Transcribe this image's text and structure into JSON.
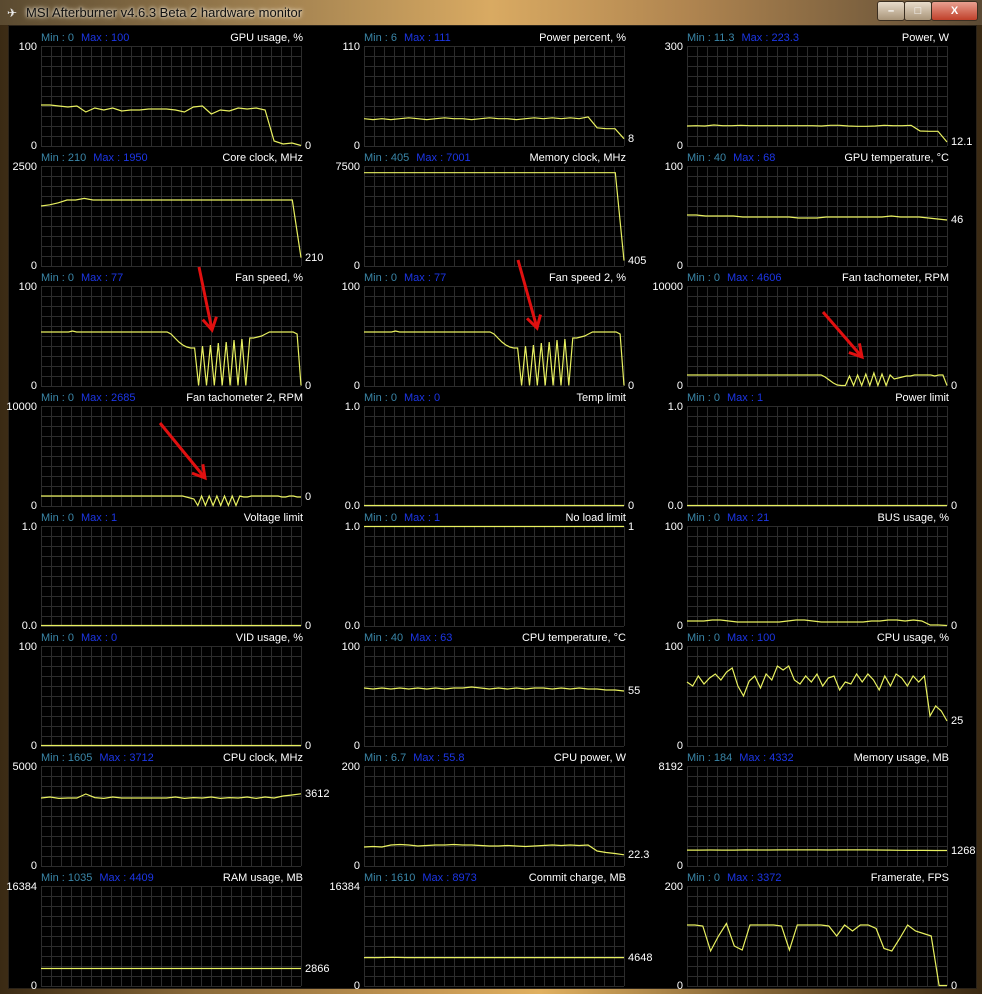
{
  "window": {
    "title": "MSI Afterburner v4.6.3 Beta 2 hardware monitor",
    "buttons": {
      "minimize": "–",
      "maximize": "□",
      "close": "X"
    }
  },
  "colors": {
    "line": "#e8f060",
    "grid": "#2c2c2c",
    "min_label": "#3a86a8",
    "max_label": "#1c36e6",
    "annotation": "#e01010"
  },
  "graphs": [
    {
      "title": "GPU usage, %",
      "min_label": "Min : 0",
      "max_label": "Max : 100",
      "ymax": "100",
      "ymin": "0",
      "current": "0",
      "range": [
        0,
        100
      ],
      "values": [
        41,
        41,
        40,
        39,
        40,
        34,
        38,
        36,
        38,
        35,
        36,
        36,
        37,
        37,
        37,
        36,
        34,
        39,
        40,
        32,
        36,
        35,
        38,
        37,
        38,
        36,
        5,
        2,
        3,
        0
      ]
    },
    {
      "title": "Power percent, %",
      "min_label": "Min : 6",
      "max_label": "Max : 111",
      "ymax": "110",
      "ymin": "0",
      "current": "8",
      "range": [
        0,
        110
      ],
      "values": [
        30,
        29,
        30,
        29,
        30,
        31,
        30,
        29,
        30,
        31,
        30,
        30,
        29,
        30,
        31,
        30,
        30,
        29,
        30,
        31,
        30,
        31,
        30,
        31,
        30,
        32,
        20,
        19,
        19,
        8
      ]
    },
    {
      "title": "Power, W",
      "min_label": "Min : 11.3",
      "max_label": "Max : 223.3",
      "ymax": "300",
      "ymin": "0",
      "current": "12.1",
      "range": [
        0,
        300
      ],
      "values": [
        60,
        61,
        60,
        63,
        61,
        61,
        62,
        61,
        61,
        61,
        61,
        61,
        61,
        61,
        61,
        60,
        62,
        62,
        60,
        59,
        59,
        60,
        62,
        61,
        61,
        62,
        45,
        44,
        44,
        12.1
      ]
    },
    {
      "title": "Core clock, MHz",
      "min_label": "Min : 210",
      "max_label": "Max : 1950",
      "ymax": "2500",
      "ymin": "0",
      "current": "210",
      "range": [
        0,
        2500
      ],
      "values": [
        1500,
        1530,
        1580,
        1650,
        1650,
        1690,
        1650,
        1650,
        1650,
        1650,
        1650,
        1650,
        1650,
        1650,
        1650,
        1650,
        1650,
        1650,
        1650,
        1650,
        1650,
        1650,
        1650,
        1650,
        1650,
        1650,
        1650,
        1650,
        1650,
        1650,
        210
      ]
    },
    {
      "title": "Memory clock, MHz",
      "min_label": "Min : 405",
      "max_label": "Max : 7001",
      "ymax": "7500",
      "ymin": "0",
      "current": "405",
      "range": [
        0,
        7500
      ],
      "values": [
        7001,
        7001,
        7001,
        7001,
        7001,
        7001,
        7001,
        7001,
        7001,
        7001,
        7001,
        7001,
        7001,
        7001,
        7001,
        7001,
        7001,
        7001,
        7001,
        7001,
        7001,
        7001,
        7001,
        7001,
        7001,
        7001,
        7001,
        7001,
        7001,
        7001,
        405
      ]
    },
    {
      "title": "GPU temperature, °C",
      "min_label": "Min : 40",
      "max_label": "Max : 68",
      "ymax": "100",
      "ymin": "0",
      "current": "46",
      "range": [
        0,
        100
      ],
      "values": [
        51,
        51,
        50,
        50,
        50,
        50,
        49,
        49,
        49,
        49,
        49,
        49,
        48,
        48,
        48,
        49,
        49,
        49,
        49,
        49,
        49,
        49,
        50,
        49,
        49,
        49,
        48,
        47,
        46
      ]
    },
    {
      "title": "Fan speed, %",
      "min_label": "Min : 0",
      "max_label": "Max : 77",
      "ymax": "100",
      "ymin": "0",
      "current": "0",
      "range": [
        0,
        100
      ],
      "values": [
        54,
        54,
        54,
        54,
        54,
        54,
        54,
        54,
        55,
        54,
        54,
        54,
        54,
        54,
        54,
        54,
        54,
        54,
        54,
        54,
        54,
        54,
        54,
        54,
        54,
        54,
        54,
        54,
        54,
        54,
        54,
        54,
        54,
        52,
        48,
        44,
        41,
        39,
        38,
        38,
        0,
        40,
        0,
        41,
        0,
        43,
        0,
        44,
        0,
        46,
        0,
        47,
        0,
        48,
        48,
        49,
        50,
        52,
        54,
        54,
        54,
        54,
        54,
        54,
        54,
        52,
        0
      ]
    },
    {
      "title": "Fan speed 2, %",
      "min_label": "Min : 0",
      "max_label": "Max : 77",
      "ymax": "100",
      "ymin": "0",
      "current": "0",
      "range": [
        0,
        100
      ],
      "values": [
        54,
        54,
        54,
        54,
        54,
        54,
        54,
        54,
        55,
        54,
        54,
        54,
        54,
        54,
        54,
        54,
        54,
        54,
        54,
        54,
        54,
        54,
        54,
        54,
        54,
        54,
        54,
        54,
        54,
        54,
        54,
        54,
        54,
        52,
        48,
        44,
        41,
        39,
        38,
        38,
        0,
        40,
        0,
        41,
        0,
        43,
        0,
        44,
        0,
        46,
        0,
        47,
        0,
        48,
        48,
        49,
        50,
        52,
        54,
        54,
        54,
        54,
        54,
        54,
        54,
        52,
        0
      ]
    },
    {
      "title": "Fan tachometer, RPM",
      "min_label": "Min : 0",
      "max_label": "Max : 4606",
      "ymax": "10000",
      "ymin": "0",
      "current": "0",
      "range": [
        0,
        10000
      ],
      "values": [
        1100,
        1100,
        1100,
        1100,
        1100,
        1100,
        1100,
        1100,
        1100,
        1100,
        1100,
        1100,
        1100,
        1100,
        1100,
        1100,
        1100,
        1100,
        1100,
        1100,
        1100,
        1100,
        1100,
        1100,
        1100,
        1100,
        1100,
        1100,
        1100,
        1100,
        1100,
        1100,
        1100,
        1100,
        900,
        600,
        300,
        100,
        0,
        0,
        1000,
        0,
        1100,
        0,
        1200,
        0,
        1300,
        0,
        1200,
        0,
        1100,
        700,
        800,
        900,
        1000,
        1000,
        1100,
        1100,
        1100,
        1100,
        1100,
        1000,
        1100,
        1100,
        0
      ]
    },
    {
      "title": "Fan tachometer 2, RPM",
      "min_label": "Min : 0",
      "max_label": "Max : 2685",
      "ymax": "10000",
      "ymin": "0",
      "current": "0",
      "range": [
        0,
        10000
      ],
      "values": [
        1000,
        1000,
        1000,
        1000,
        1000,
        1000,
        1000,
        1000,
        1000,
        1000,
        1000,
        1000,
        1000,
        1000,
        1000,
        1000,
        1000,
        1000,
        1000,
        1000,
        1000,
        1000,
        1000,
        1000,
        1000,
        1000,
        1000,
        1000,
        1000,
        1000,
        1000,
        1000,
        1000,
        1000,
        1000,
        1000,
        1000,
        1000,
        900,
        800,
        700,
        0,
        1000,
        0,
        1000,
        0,
        1000,
        0,
        1000,
        0,
        1000,
        0,
        1000,
        900,
        900,
        1000,
        1000,
        1000,
        1000,
        1000,
        1000,
        1000,
        1000,
        900,
        900,
        1000,
        1000,
        900,
        900
      ]
    },
    {
      "title": "Temp limit",
      "min_label": "Min : 0",
      "max_label": "Max : 0",
      "ymax": "1.0",
      "ymin": "0.0",
      "current": "0",
      "range": [
        0,
        1
      ],
      "values": [
        0,
        0
      ]
    },
    {
      "title": "Power limit",
      "min_label": "Min : 0",
      "max_label": "Max : 1",
      "ymax": "1.0",
      "ymin": "0.0",
      "current": "0",
      "range": [
        0,
        1
      ],
      "values": [
        0,
        0
      ]
    },
    {
      "title": "Voltage limit",
      "min_label": "Min : 0",
      "max_label": "Max : 1",
      "ymax": "1.0",
      "ymin": "0.0",
      "current": "0",
      "range": [
        0,
        1
      ],
      "values": [
        0,
        0
      ]
    },
    {
      "title": "No load limit",
      "min_label": "Min : 0",
      "max_label": "Max : 1",
      "ymax": "1.0",
      "ymin": "0.0",
      "current": "1",
      "range": [
        0,
        1
      ],
      "values": [
        1,
        1
      ]
    },
    {
      "title": "BUS usage, %",
      "min_label": "Min : 0",
      "max_label": "Max : 21",
      "ymax": "100",
      "ymin": "0",
      "current": "0",
      "range": [
        0,
        100
      ],
      "values": [
        5,
        5,
        5,
        6,
        6,
        5,
        4,
        4,
        4,
        4,
        4,
        4,
        5,
        6,
        6,
        5,
        4,
        4,
        4,
        4,
        4,
        4,
        5,
        5,
        6,
        6,
        5,
        6,
        5,
        1,
        1,
        0
      ]
    },
    {
      "title": "VID usage, %",
      "min_label": "Min : 0",
      "max_label": "Max : 0",
      "ymax": "100",
      "ymin": "0",
      "current": "0",
      "range": [
        0,
        100
      ],
      "values": [
        0,
        0
      ]
    },
    {
      "title": "CPU temperature, °C",
      "min_label": "Min : 40",
      "max_label": "Max : 63",
      "ymax": "100",
      "ymin": "0",
      "current": "55",
      "range": [
        0,
        100
      ],
      "values": [
        58,
        57,
        58,
        57,
        58,
        57,
        58,
        57,
        58,
        57,
        58,
        58,
        59,
        58,
        57,
        58,
        57,
        58,
        57,
        58,
        58,
        57,
        58,
        57,
        58,
        57,
        57,
        56,
        56,
        55
      ]
    },
    {
      "title": "CPU usage, %",
      "min_label": "Min : 0",
      "max_label": "Max : 100",
      "ymax": "100",
      "ymin": "0",
      "current": "25",
      "range": [
        0,
        100
      ],
      "values": [
        64,
        60,
        70,
        62,
        68,
        72,
        66,
        74,
        78,
        60,
        50,
        65,
        70,
        58,
        72,
        66,
        80,
        76,
        80,
        66,
        62,
        70,
        64,
        72,
        60,
        68,
        70,
        56,
        64,
        62,
        72,
        64,
        72,
        66,
        56,
        70,
        60,
        72,
        68,
        60,
        70,
        64,
        70,
        30,
        40,
        35,
        25
      ]
    },
    {
      "title": "CPU clock, MHz",
      "min_label": "Min : 1605",
      "max_label": "Max : 3712",
      "ymax": "5000",
      "ymin": "0",
      "current": "3612",
      "range": [
        0,
        5000
      ],
      "values": [
        3400,
        3450,
        3380,
        3400,
        3400,
        3600,
        3420,
        3380,
        3450,
        3400,
        3400,
        3400,
        3400,
        3400,
        3400,
        3450,
        3380,
        3420,
        3400,
        3450,
        3380,
        3420,
        3400,
        3450,
        3380,
        3450,
        3400,
        3500,
        3550,
        3612
      ]
    },
    {
      "title": "CPU power, W",
      "min_label": "Min : 6.7",
      "max_label": "Max : 55.8",
      "ymax": "200",
      "ymin": "0",
      "current": "22.3",
      "range": [
        0,
        200
      ],
      "values": [
        38,
        39,
        38,
        42,
        43,
        42,
        40,
        41,
        42,
        42,
        43,
        42,
        42,
        41,
        40,
        40,
        41,
        40,
        39,
        40,
        41,
        42,
        41,
        42,
        41,
        42,
        30,
        27,
        25,
        22.3
      ]
    },
    {
      "title": "Memory usage, MB",
      "min_label": "Min : 184",
      "max_label": "Max : 4332",
      "ymax": "8192",
      "ymin": "0",
      "current": "1268",
      "range": [
        0,
        8192
      ],
      "values": [
        1300,
        1300,
        1310,
        1300,
        1300,
        1320,
        1310,
        1310,
        1320,
        1320,
        1320,
        1320,
        1310,
        1320,
        1320,
        1320,
        1310,
        1300,
        1290,
        1280,
        1280,
        1270,
        1268
      ]
    },
    {
      "title": "RAM usage, MB",
      "min_label": "Min : 1035",
      "max_label": "Max : 4409",
      "ymax": "16384",
      "ymin": "0",
      "current": "2866",
      "range": [
        0,
        16384
      ],
      "values": [
        2866,
        2866
      ]
    },
    {
      "title": "Commit charge, MB",
      "min_label": "Min : 1610",
      "max_label": "Max : 8973",
      "ymax": "16384",
      "ymin": "0",
      "current": "4648",
      "range": [
        0,
        16384
      ],
      "values": [
        4648,
        4648,
        4700,
        4648,
        4648,
        4648,
        4660,
        4648,
        4648,
        4648,
        4648,
        4648,
        4648,
        4648,
        4648,
        4648,
        4648,
        4648,
        4648
      ]
    },
    {
      "title": "Framerate, FPS",
      "min_label": "Min : 0",
      "max_label": "Max : 3372",
      "ymax": "200",
      "ymin": "0",
      "current": "0",
      "range": [
        0,
        200
      ],
      "values": [
        122,
        122,
        120,
        70,
        100,
        125,
        80,
        72,
        122,
        122,
        122,
        122,
        120,
        72,
        122,
        122,
        122,
        122,
        120,
        100,
        122,
        110,
        122,
        122,
        115,
        75,
        70,
        95,
        122,
        110,
        105,
        100,
        0,
        0
      ]
    }
  ]
}
